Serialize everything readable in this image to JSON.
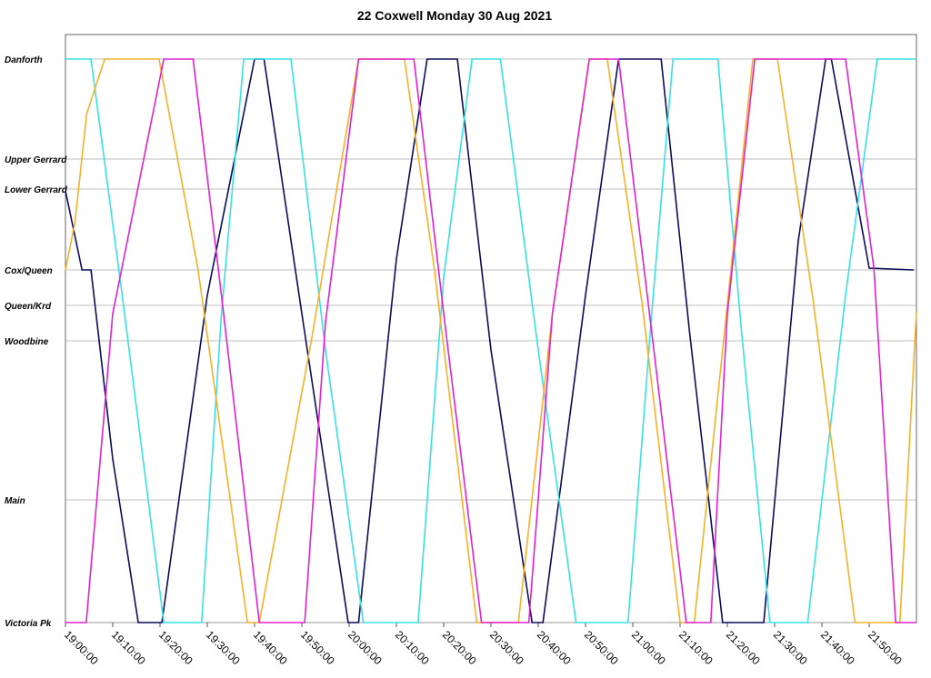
{
  "chart_data": {
    "type": "line",
    "title": "22 Coxwell Monday 30 Aug 2021",
    "xlim": [
      0,
      180
    ],
    "xticks": [
      {
        "value": 0,
        "label": "19:00:00"
      },
      {
        "value": 10,
        "label": "19:10:00"
      },
      {
        "value": 20,
        "label": "19:20:00"
      },
      {
        "value": 30,
        "label": "19:30:00"
      },
      {
        "value": 40,
        "label": "19:40:00"
      },
      {
        "value": 50,
        "label": "19:50:00"
      },
      {
        "value": 60,
        "label": "20:00:00"
      },
      {
        "value": 70,
        "label": "20:10:00"
      },
      {
        "value": 80,
        "label": "20:20:00"
      },
      {
        "value": 90,
        "label": "20:30:00"
      },
      {
        "value": 100,
        "label": "20:40:00"
      },
      {
        "value": 110,
        "label": "20:50:00"
      },
      {
        "value": 120,
        "label": "21:00:00"
      },
      {
        "value": 130,
        "label": "21:10:00"
      },
      {
        "value": 140,
        "label": "21:20:00"
      },
      {
        "value": 150,
        "label": "21:30:00"
      },
      {
        "value": 160,
        "label": "21:40:00"
      },
      {
        "value": 170,
        "label": "21:50:00"
      }
    ],
    "ylim": [
      0,
      6.47
    ],
    "yticks": [
      {
        "value": 0,
        "label": "Victoria Pk"
      },
      {
        "value": 1.35,
        "label": "Main"
      },
      {
        "value": 3.1,
        "label": "Woodbine"
      },
      {
        "value": 3.49,
        "label": "Queen/Krd"
      },
      {
        "value": 3.88,
        "label": "Cox/Queen"
      },
      {
        "value": 4.77,
        "label": "Lower Gerrard"
      },
      {
        "value": 5.1,
        "label": "Upper Gerrard"
      },
      {
        "value": 6.2,
        "label": "Danforth"
      }
    ],
    "grid": true,
    "series": [
      {
        "color": "#0b0b5c",
        "x": [
          0,
          3.5,
          5.4,
          10,
          15.4,
          20.4,
          30,
          40,
          42,
          50,
          59.8,
          62,
          70,
          76.5,
          82.9,
          90,
          98.7,
          101,
          110,
          117,
          126,
          132,
          139,
          147.7,
          155,
          160.8,
          162,
          170,
          179.4
        ],
        "values": [
          4.75,
          3.88,
          3.88,
          1.8,
          0,
          0,
          3.6,
          6.2,
          6.2,
          3.4,
          0,
          0,
          4.0,
          6.2,
          6.2,
          3.0,
          0,
          0,
          3.6,
          6.2,
          6.2,
          3.2,
          0,
          0,
          4.2,
          6.2,
          6.2,
          3.9,
          3.88
        ]
      },
      {
        "color": "#38e0e6",
        "x": [
          0,
          5.4,
          12,
          20.8,
          28.8,
          33,
          37.7,
          47.7,
          55,
          63,
          74.6,
          80,
          86,
          92,
          100,
          108,
          119,
          124,
          128.5,
          138,
          143,
          149,
          157,
          165,
          171.7,
          180
        ],
        "values": [
          6.2,
          6.2,
          3.6,
          0,
          0,
          3.4,
          6.2,
          6.2,
          3.0,
          0,
          0,
          3.8,
          6.2,
          6.2,
          3.0,
          0,
          0,
          3.4,
          6.2,
          6.2,
          3.2,
          0,
          0,
          3.6,
          6.2,
          6.2
        ]
      },
      {
        "color": "#f5b028",
        "x": [
          0,
          2,
          4.5,
          8.3,
          19.8,
          28,
          38.5,
          41,
          52,
          62,
          71.7,
          78,
          87,
          95.8,
          103,
          110.8,
          114.6,
          122,
          130,
          133,
          140,
          145.4,
          150.6,
          158,
          167,
          176.5,
          180
        ],
        "values": [
          3.88,
          4.4,
          5.6,
          6.2,
          6.2,
          3.9,
          0,
          0,
          3.1,
          6.2,
          6.2,
          3.9,
          0,
          0,
          3.4,
          6.2,
          6.2,
          3.5,
          0,
          0,
          3.5,
          6.2,
          6.2,
          3.6,
          0,
          0,
          3.42
        ]
      },
      {
        "color": "#e022d2",
        "x": [
          0,
          4.4,
          10,
          20.8,
          27,
          33,
          41,
          50.6,
          55,
          62,
          73.7,
          80,
          88,
          98,
          103,
          110.8,
          117,
          124,
          131.3,
          136.5,
          140,
          145.8,
          165,
          171,
          175.6,
          180
        ],
        "values": [
          0,
          0,
          3.4,
          6.2,
          6.2,
          3.6,
          0,
          0,
          3.3,
          6.2,
          6.2,
          3.4,
          0,
          0,
          3.4,
          6.2,
          6.2,
          3.2,
          0,
          0,
          3.4,
          6.2,
          6.2,
          3.9,
          0,
          0
        ]
      }
    ]
  }
}
